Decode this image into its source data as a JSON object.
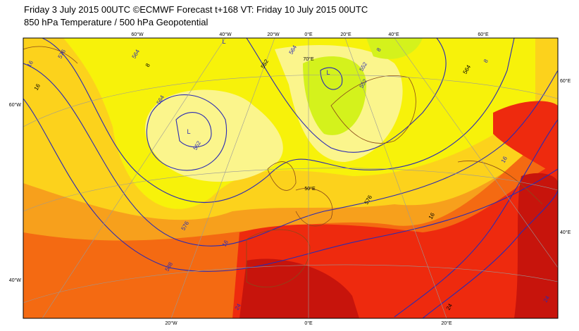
{
  "header": {
    "title": "Friday 3 July 2015 00UTC ©ECMWF Forecast t+168 VT: Friday 10 July 2015 00UTC",
    "subtitle": "850 hPa Temperature / 500 hPa Geopotential"
  },
  "map": {
    "graticule_labels": [
      "60°W",
      "40°W",
      "20°W",
      "0°E",
      "20°E",
      "40°E",
      "60°E",
      "60°W",
      "40°W",
      "60°E",
      "40°E",
      "20°W",
      "0°E",
      "20°E",
      "70°E",
      "50°E"
    ],
    "contour_labels": [
      "576",
      "564",
      "8",
      "564",
      "552",
      "552",
      "552",
      "8",
      "564",
      "8",
      "564",
      "16",
      "16",
      "552",
      "576",
      "576",
      "16",
      "16",
      "588",
      "24",
      "24",
      "24",
      "16"
    ],
    "lows": [
      "L",
      "L",
      "L"
    ]
  }
}
